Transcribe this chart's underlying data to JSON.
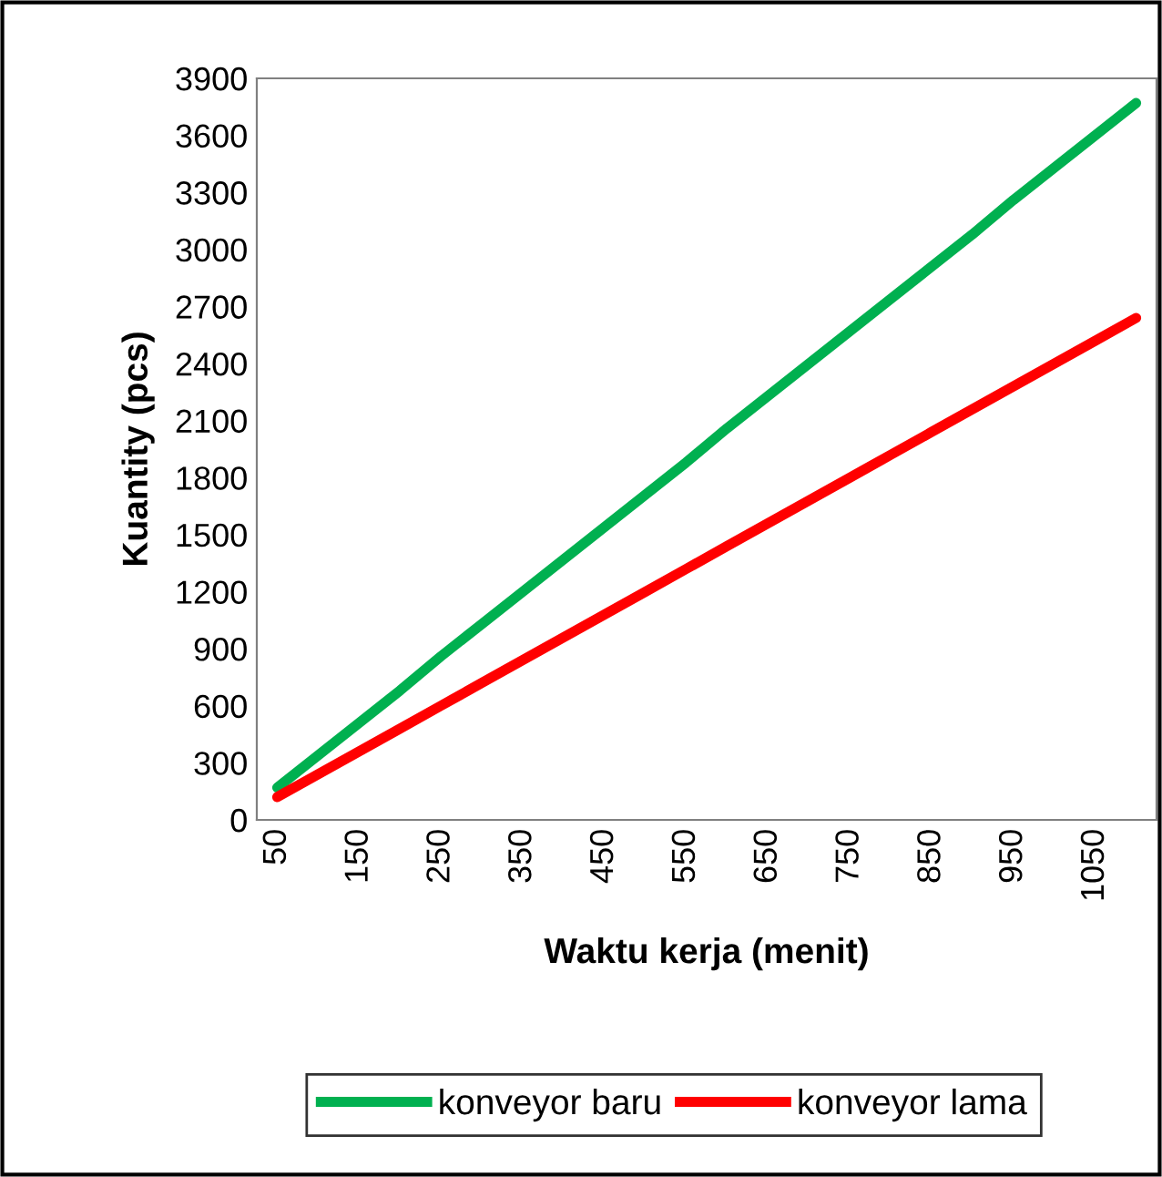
{
  "chart_data": {
    "type": "line",
    "xlabel": "Waktu kerja (menit)",
    "ylabel": "Kuantity (pcs)",
    "categories": [
      "50",
      null,
      "150",
      null,
      "250",
      null,
      "350",
      null,
      "450",
      null,
      "550",
      null,
      "650",
      null,
      "750",
      null,
      "850",
      null,
      "950",
      null,
      "1050",
      null
    ],
    "series": [
      {
        "name": "konveyor baru",
        "color": "#00b050",
        "values": [
          170,
          340,
          510,
          680,
          860,
          1030,
          1200,
          1370,
          1540,
          1710,
          1880,
          2060,
          2230,
          2400,
          2570,
          2740,
          2910,
          3080,
          3260,
          3430,
          3600,
          3770
        ]
      },
      {
        "name": "konveyor lama",
        "color": "#ff0000",
        "values": [
          120,
          240,
          360,
          480,
          600,
          720,
          840,
          960,
          1080,
          1200,
          1320,
          1440,
          1560,
          1680,
          1800,
          1920,
          2040,
          2160,
          2280,
          2400,
          2520,
          2640
        ]
      }
    ],
    "ylim": [
      0,
      3900
    ],
    "yticks": [
      0,
      300,
      600,
      900,
      1200,
      1500,
      1800,
      2100,
      2400,
      2700,
      3000,
      3300,
      3600,
      3900
    ],
    "grid": false,
    "legend": "bottom",
    "marker": "none",
    "line_style": "solid"
  }
}
